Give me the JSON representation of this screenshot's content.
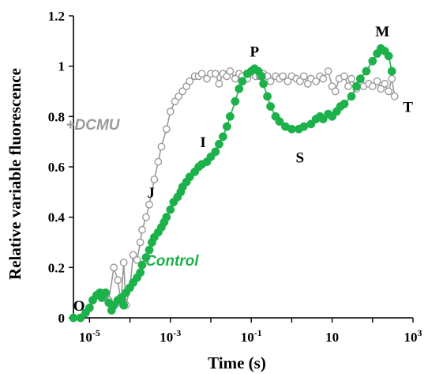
{
  "chart_data": {
    "type": "scatter",
    "xlabel": "Time (s)",
    "ylabel": "Relative variable fluorescence",
    "xscale": "log",
    "xlim": [
      4e-06,
      1000
    ],
    "ylim": [
      0,
      1.2
    ],
    "x_ticks": [
      {
        "value": 1e-05,
        "base": "10",
        "exp": "-5"
      },
      {
        "value": 0.001,
        "base": "10",
        "exp": "-3"
      },
      {
        "value": 0.1,
        "base": "10",
        "exp": "-1"
      },
      {
        "value": 10,
        "base": "10",
        "exp": ""
      },
      {
        "value": 1000,
        "base": "10",
        "exp": "3"
      }
    ],
    "y_ticks": [
      "0",
      "0.2",
      "0.4",
      "0.6",
      "0.8",
      "1",
      "1.2"
    ],
    "y_tick_values": [
      0,
      0.2,
      0.4,
      0.6,
      0.8,
      1.0,
      1.2
    ],
    "series": [
      {
        "name": "+DCMU",
        "color": "#9a9a9a",
        "marker": "open-circle",
        "points": [
          [
            2e-05,
            0.1
          ],
          [
            2.5e-05,
            0.08
          ],
          [
            3e-05,
            0.07
          ],
          [
            4e-05,
            0.2
          ],
          [
            5e-05,
            0.15
          ],
          [
            6e-05,
            0.06
          ],
          [
            7e-05,
            0.22
          ],
          [
            8e-05,
            0.05
          ],
          [
            0.0001,
            0.12
          ],
          [
            0.00012,
            0.25
          ],
          [
            0.00015,
            0.23
          ],
          [
            0.00018,
            0.3
          ],
          [
            0.0002,
            0.35
          ],
          [
            0.00025,
            0.4
          ],
          [
            0.0003,
            0.45
          ],
          [
            0.0004,
            0.55
          ],
          [
            0.0005,
            0.62
          ],
          [
            0.0006,
            0.68
          ],
          [
            0.0008,
            0.75
          ],
          [
            0.001,
            0.82
          ],
          [
            0.0013,
            0.86
          ],
          [
            0.0016,
            0.88
          ],
          [
            0.002,
            0.9
          ],
          [
            0.0025,
            0.92
          ],
          [
            0.003,
            0.94
          ],
          [
            0.004,
            0.96
          ],
          [
            0.005,
            0.96
          ],
          [
            0.006,
            0.97
          ],
          [
            0.008,
            0.95
          ],
          [
            0.01,
            0.97
          ],
          [
            0.013,
            0.97
          ],
          [
            0.016,
            0.93
          ],
          [
            0.02,
            0.97
          ],
          [
            0.025,
            0.96
          ],
          [
            0.03,
            0.98
          ],
          [
            0.04,
            0.95
          ],
          [
            0.05,
            0.97
          ],
          [
            0.06,
            0.96
          ],
          [
            0.08,
            0.95
          ],
          [
            0.1,
            0.97
          ],
          [
            0.13,
            0.96
          ],
          [
            0.16,
            0.96
          ],
          [
            0.2,
            0.97
          ],
          [
            0.25,
            0.96
          ],
          [
            0.3,
            0.94
          ],
          [
            0.4,
            0.96
          ],
          [
            0.5,
            0.95
          ],
          [
            0.6,
            0.96
          ],
          [
            0.8,
            0.94
          ],
          [
            1,
            0.96
          ],
          [
            1.3,
            0.95
          ],
          [
            1.6,
            0.94
          ],
          [
            2,
            0.96
          ],
          [
            2.5,
            0.93
          ],
          [
            3,
            0.95
          ],
          [
            4,
            0.94
          ],
          [
            5,
            0.96
          ],
          [
            6,
            0.95
          ],
          [
            8,
            0.98
          ],
          [
            10,
            0.92
          ],
          [
            12,
            0.9
          ],
          [
            15,
            0.95
          ],
          [
            20,
            0.96
          ],
          [
            25,
            0.92
          ],
          [
            30,
            0.95
          ],
          [
            40,
            0.91
          ],
          [
            50,
            0.94
          ],
          [
            60,
            0.92
          ],
          [
            80,
            0.93
          ],
          [
            100,
            0.92
          ],
          [
            130,
            0.94
          ],
          [
            160,
            0.91
          ],
          [
            200,
            0.93
          ],
          [
            250,
            0.9
          ],
          [
            300,
            0.95
          ],
          [
            350,
            0.88
          ]
        ]
      },
      {
        "name": "Control",
        "color": "#1db14b",
        "marker": "filled-circle",
        "points": [
          [
            4e-06,
            0.0
          ],
          [
            6e-06,
            0.0
          ],
          [
            8e-06,
            0.02
          ],
          [
            1e-05,
            0.04
          ],
          [
            1.2e-05,
            0.07
          ],
          [
            1.5e-05,
            0.09
          ],
          [
            1.8e-05,
            0.1
          ],
          [
            2e-05,
            0.08
          ],
          [
            2.5e-05,
            0.1
          ],
          [
            3e-05,
            0.06
          ],
          [
            3.5e-05,
            0.03
          ],
          [
            4e-05,
            0.05
          ],
          [
            5e-05,
            0.07
          ],
          [
            6e-05,
            0.08
          ],
          [
            7e-05,
            0.05
          ],
          [
            8e-05,
            0.1
          ],
          [
            0.0001,
            0.12
          ],
          [
            0.00012,
            0.14
          ],
          [
            0.00015,
            0.16
          ],
          [
            0.00018,
            0.18
          ],
          [
            0.0002,
            0.21
          ],
          [
            0.00025,
            0.24
          ],
          [
            0.0003,
            0.27
          ],
          [
            0.00035,
            0.3
          ],
          [
            0.0004,
            0.32
          ],
          [
            0.0005,
            0.34
          ],
          [
            0.0006,
            0.36
          ],
          [
            0.0007,
            0.38
          ],
          [
            0.0008,
            0.4
          ],
          [
            0.001,
            0.43
          ],
          [
            0.0012,
            0.46
          ],
          [
            0.0015,
            0.48
          ],
          [
            0.0018,
            0.5
          ],
          [
            0.002,
            0.52
          ],
          [
            0.0025,
            0.54
          ],
          [
            0.003,
            0.56
          ],
          [
            0.004,
            0.58
          ],
          [
            0.005,
            0.6
          ],
          [
            0.006,
            0.61
          ],
          [
            0.008,
            0.62
          ],
          [
            0.01,
            0.64
          ],
          [
            0.013,
            0.66
          ],
          [
            0.016,
            0.69
          ],
          [
            0.02,
            0.72
          ],
          [
            0.025,
            0.76
          ],
          [
            0.03,
            0.8
          ],
          [
            0.04,
            0.86
          ],
          [
            0.05,
            0.91
          ],
          [
            0.06,
            0.94
          ],
          [
            0.08,
            0.97
          ],
          [
            0.1,
            0.98
          ],
          [
            0.12,
            0.99
          ],
          [
            0.15,
            0.98
          ],
          [
            0.18,
            0.96
          ],
          [
            0.2,
            0.93
          ],
          [
            0.25,
            0.88
          ],
          [
            0.3,
            0.84
          ],
          [
            0.4,
            0.8
          ],
          [
            0.5,
            0.78
          ],
          [
            0.7,
            0.76
          ],
          [
            1,
            0.75
          ],
          [
            1.5,
            0.75
          ],
          [
            2,
            0.76
          ],
          [
            3,
            0.77
          ],
          [
            4,
            0.79
          ],
          [
            5,
            0.8
          ],
          [
            6,
            0.79
          ],
          [
            8,
            0.81
          ],
          [
            10,
            0.8
          ],
          [
            13,
            0.82
          ],
          [
            16,
            0.84
          ],
          [
            20,
            0.85
          ],
          [
            30,
            0.88
          ],
          [
            40,
            0.92
          ],
          [
            50,
            0.95
          ],
          [
            70,
            0.98
          ],
          [
            100,
            1.02
          ],
          [
            130,
            1.05
          ],
          [
            160,
            1.07
          ],
          [
            200,
            1.06
          ],
          [
            250,
            1.04
          ],
          [
            300,
            0.98
          ]
        ]
      }
    ],
    "annotations": [
      {
        "text": "O",
        "x": 5.5e-06,
        "y": 0.05
      },
      {
        "text": "J",
        "x": 0.00033,
        "y": 0.5
      },
      {
        "text": "I",
        "x": 0.0064,
        "y": 0.7
      },
      {
        "text": "P",
        "x": 0.12,
        "y": 1.06
      },
      {
        "text": "S",
        "x": 1.6,
        "y": 0.64
      },
      {
        "text": "M",
        "x": 175,
        "y": 1.14
      },
      {
        "text": "T",
        "x": 750,
        "y": 0.84
      }
    ],
    "series_labels": [
      {
        "text": "+DCMU",
        "x": 2.6e-06,
        "y": 0.77,
        "color": "#9a9a9a"
      },
      {
        "text": "Control",
        "x": 0.00024,
        "y": 0.23,
        "color": "#1db14b"
      }
    ]
  }
}
